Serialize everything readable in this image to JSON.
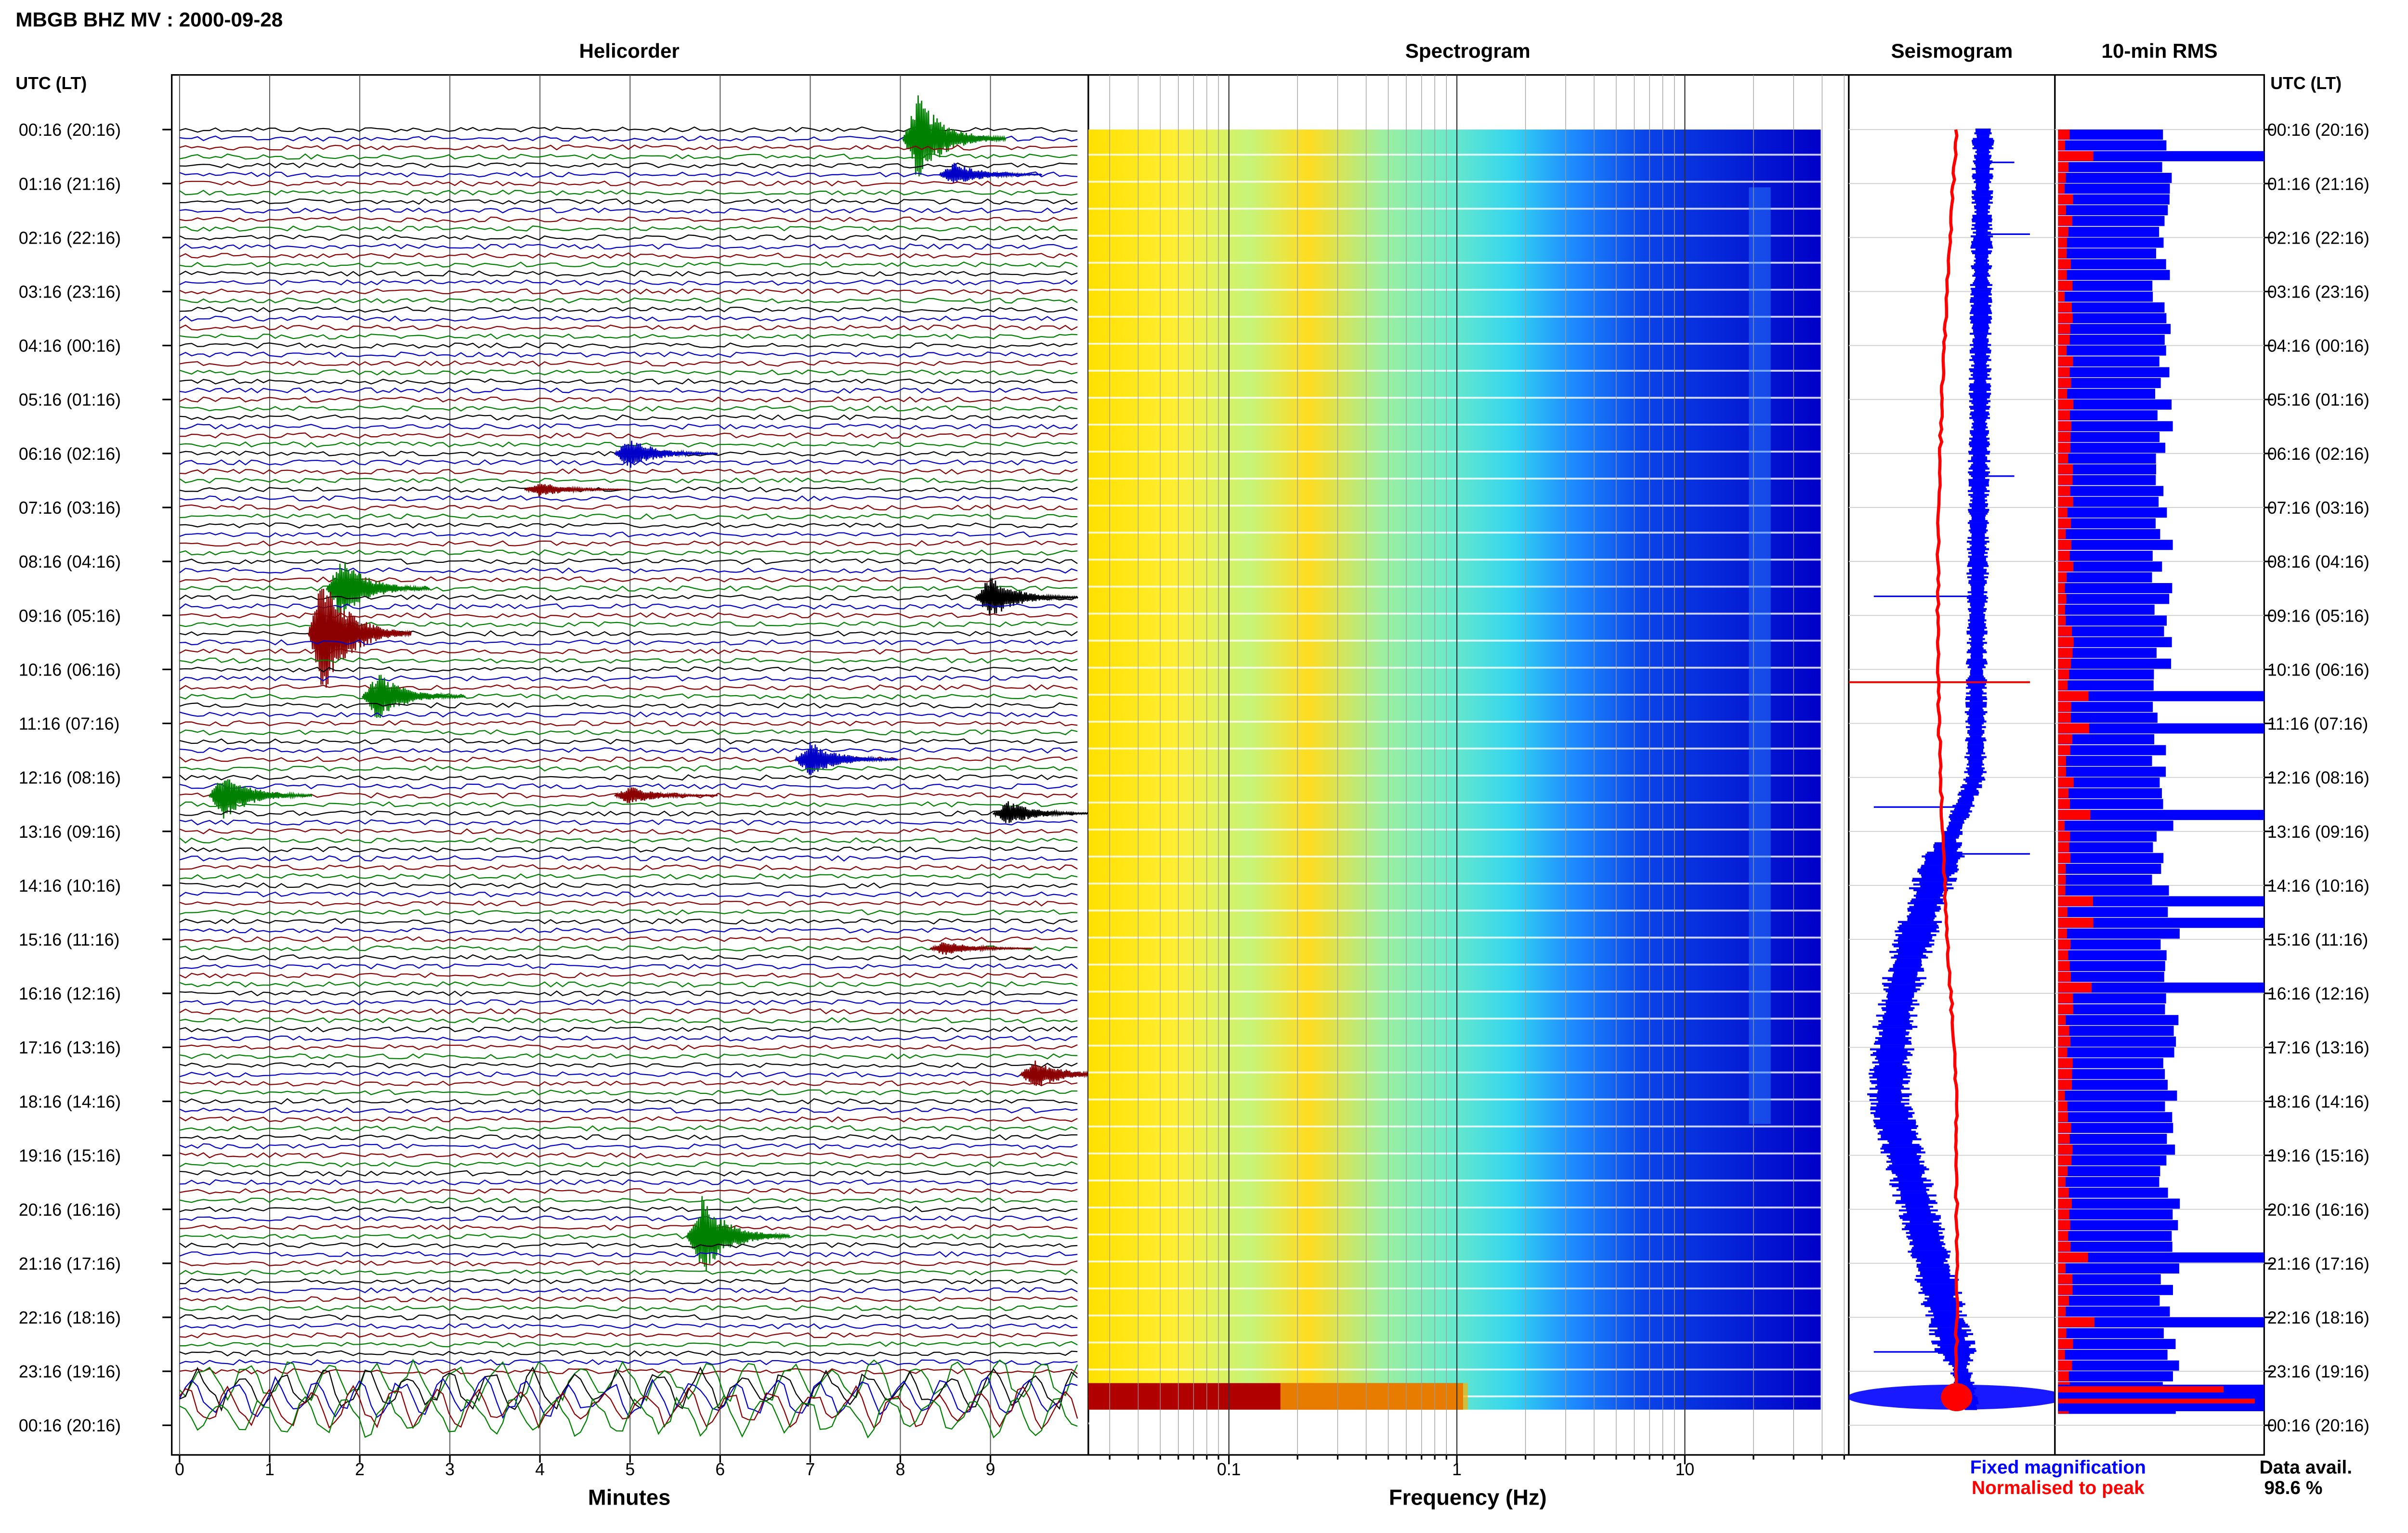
{
  "header": {
    "title": "MBGB BHZ MV : 2000-09-28",
    "left_axis_title": "UTC (LT)",
    "right_axis_title": "UTC (LT)"
  },
  "panels": {
    "helicorder": "Helicorder",
    "spectrogram": "Spectrogram",
    "seismogram": "Seismogram",
    "rms": "10-min RMS"
  },
  "time_labels": [
    "00:16 (20:16)",
    "01:16 (21:16)",
    "02:16 (22:16)",
    "03:16 (23:16)",
    "04:16 (00:16)",
    "05:16 (01:16)",
    "06:16 (02:16)",
    "07:16 (03:16)",
    "08:16 (04:16)",
    "09:16 (05:16)",
    "10:16 (06:16)",
    "11:16 (07:16)",
    "12:16 (08:16)",
    "13:16 (09:16)",
    "14:16 (10:16)",
    "15:16 (11:16)",
    "16:16 (12:16)",
    "17:16 (13:16)",
    "18:16 (14:16)",
    "19:16 (15:16)",
    "20:16 (16:16)",
    "21:16 (17:16)",
    "22:16 (18:16)",
    "23:16 (19:16)",
    "00:16 (20:16)"
  ],
  "legend": {
    "fixed": "Fixed magnification",
    "normalised": "Normalised to peak",
    "fixed_color": "#0000ff",
    "normalised_color": "#ff0000"
  },
  "data_avail": {
    "label": "Data avail.",
    "value": "98.6 %"
  },
  "chart_data": [
    {
      "type": "line",
      "title": "Helicorder",
      "xlabel": "Minutes",
      "ylabel": "UTC (LT)",
      "x_ticks": [
        "0",
        "1",
        "2",
        "3",
        "4",
        "5",
        "6",
        "7",
        "8",
        "9"
      ],
      "xlim": [
        0,
        10
      ],
      "rows": 144,
      "row_minutes": 10,
      "trace_colors": [
        "#000000",
        "#0000c8",
        "#8b0000",
        "#008000"
      ],
      "events": [
        {
          "row": 1,
          "minute": 8.2,
          "amp": 28,
          "color": "#008000"
        },
        {
          "row": 5,
          "minute": 8.6,
          "amp": 8,
          "color": "#0000c8"
        },
        {
          "row": 36,
          "minute": 5.0,
          "amp": 10,
          "color": "#0000c8"
        },
        {
          "row": 40,
          "minute": 4.0,
          "amp": 5,
          "color": "#8b0000"
        },
        {
          "row": 51,
          "minute": 1.8,
          "amp": 20,
          "color": "#008000"
        },
        {
          "row": 52,
          "minute": 9.0,
          "amp": 14,
          "color": "#000000"
        },
        {
          "row": 56,
          "minute": 1.6,
          "amp": 40,
          "color": "#8b0000"
        },
        {
          "row": 63,
          "minute": 2.2,
          "amp": 16,
          "color": "#008000"
        },
        {
          "row": 70,
          "minute": 7.0,
          "amp": 12,
          "color": "#0000c8"
        },
        {
          "row": 74,
          "minute": 0.5,
          "amp": 16,
          "color": "#008000"
        },
        {
          "row": 74,
          "minute": 5.0,
          "amp": 6,
          "color": "#8b0000"
        },
        {
          "row": 76,
          "minute": 9.2,
          "amp": 8,
          "color": "#000000"
        },
        {
          "row": 91,
          "minute": 8.5,
          "amp": 5,
          "color": "#8b0000"
        },
        {
          "row": 105,
          "minute": 9.5,
          "amp": 10,
          "color": "#8b0000"
        },
        {
          "row": 123,
          "minute": 5.8,
          "amp": 26,
          "color": "#008000"
        }
      ]
    },
    {
      "type": "heatmap",
      "title": "Spectrogram",
      "xlabel": "Frequency (Hz)",
      "x_scale": "log",
      "xlim": [
        0.02,
        50
      ],
      "x_ticks": [
        "0.1",
        "1",
        "10"
      ],
      "colormap": [
        "#ffff00",
        "#aaffaa",
        "#00ddff",
        "#0066ff",
        "#0000cc"
      ]
    },
    {
      "type": "line",
      "title": "Seismogram",
      "series": [
        {
          "name": "Fixed magnification",
          "color": "#0000ff"
        },
        {
          "name": "Normalised to peak",
          "color": "#ff0000"
        }
      ]
    },
    {
      "type": "bar",
      "title": "10-min RMS",
      "series": [
        {
          "name": "Fixed magnification",
          "color": "#0000ff"
        },
        {
          "name": "Normalised to peak",
          "color": "#ff0000"
        }
      ]
    }
  ]
}
